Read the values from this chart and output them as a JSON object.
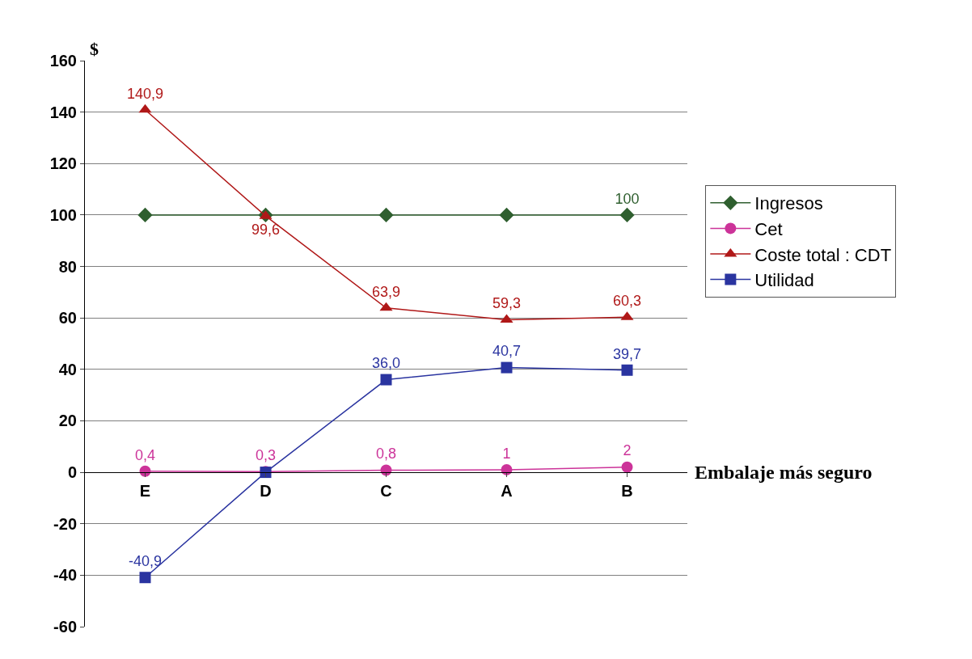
{
  "chart_data": {
    "type": "line",
    "ylabel": "$",
    "xlabel": "Embalaje más seguro",
    "categories": [
      "E",
      "D",
      "C",
      "A",
      "B"
    ],
    "series": [
      {
        "name": "Ingresos",
        "color": "#2f5f2f",
        "marker": "diamond",
        "values": [
          100,
          100,
          100,
          100,
          100
        ],
        "value_labels": [
          null,
          null,
          null,
          null,
          "100"
        ]
      },
      {
        "name": "Cet",
        "color": "#cc3399",
        "marker": "circle",
        "values": [
          0.4,
          0.3,
          0.8,
          1,
          2
        ],
        "value_labels": [
          "0,4",
          "0,3",
          "0,8",
          "1",
          "2"
        ]
      },
      {
        "name": "Coste total : CDT",
        "color": "#b01818",
        "marker": "triangle",
        "values": [
          140.9,
          99.6,
          63.9,
          59.3,
          60.3
        ],
        "value_labels": [
          "140,9",
          "99,6",
          "63,9",
          "59,3",
          "60,3"
        ]
      },
      {
        "name": "Utilidad",
        "color": "#2a34a0",
        "marker": "square",
        "values": [
          -40.9,
          0,
          36.0,
          40.7,
          39.7
        ],
        "value_labels": [
          "-40,9",
          null,
          "36,0",
          "40,7",
          "39,7"
        ]
      }
    ],
    "ylim": [
      -60,
      160
    ],
    "yticks": [
      -60,
      -40,
      -20,
      0,
      20,
      40,
      60,
      80,
      100,
      120,
      140,
      160
    ],
    "grid": "y",
    "legend": "right"
  }
}
